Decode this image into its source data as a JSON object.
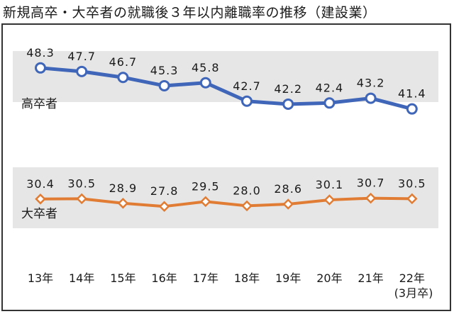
{
  "chart_data": {
    "type": "line",
    "title": "新規高卒・大卒者の就職後３年以内離職率の推移（建設業）",
    "categories": [
      "13年",
      "14年",
      "15年",
      "16年",
      "17年",
      "18年",
      "19年",
      "20年",
      "21年",
      "22年"
    ],
    "category_note": "(3月卒)",
    "series": [
      {
        "name": "高卒者",
        "color": "#3f66b8",
        "marker": "circle",
        "values": [
          48.3,
          47.7,
          46.7,
          45.3,
          45.8,
          42.7,
          42.2,
          42.4,
          43.2,
          41.4
        ],
        "labels": [
          "48.3",
          "47.7",
          "46.7",
          "45.3",
          "45.8",
          "42.7",
          "42.2",
          "42.4",
          "43.2",
          "41.4"
        ],
        "ylim": [
          38.5,
          50.9
        ]
      },
      {
        "name": "大卒者",
        "color": "#e07c33",
        "marker": "diamond",
        "values": [
          30.4,
          30.5,
          28.9,
          27.8,
          29.5,
          28.0,
          28.6,
          30.1,
          30.7,
          30.5
        ],
        "labels": [
          "30.4",
          "30.5",
          "28.9",
          "27.8",
          "29.5",
          "28.0",
          "28.6",
          "30.1",
          "30.7",
          "30.5"
        ],
        "ylim": [
          25.6,
          34.1
        ]
      }
    ],
    "band_color": "#e6e6e6"
  }
}
